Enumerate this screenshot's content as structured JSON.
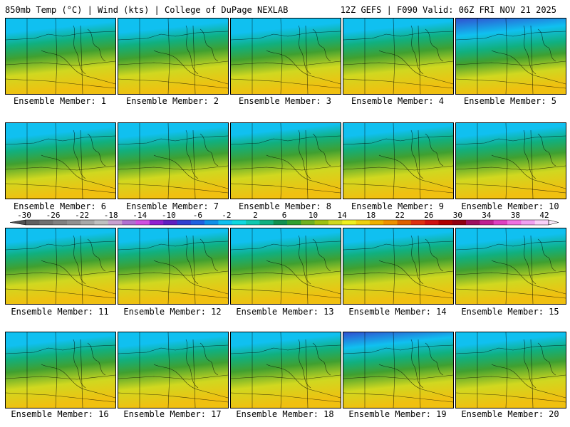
{
  "header": {
    "left": "850mb Temp (°C) | Wind (kts) | College of DuPage NEXLAB",
    "right": "12Z GEFS | F090 Valid: 06Z FRI NOV 21 2025"
  },
  "panels": [
    {
      "caption": "Ensemble Member: 1",
      "cold": 0.55
    },
    {
      "caption": "Ensemble Member: 2",
      "cold": 0.55
    },
    {
      "caption": "Ensemble Member: 3",
      "cold": 0.65
    },
    {
      "caption": "Ensemble Member: 4",
      "cold": 0.5
    },
    {
      "caption": "Ensemble Member: 5",
      "cold": 0.95
    },
    {
      "caption": "Ensemble Member: 6",
      "cold": 0.6
    },
    {
      "caption": "Ensemble Member: 7",
      "cold": 0.55
    },
    {
      "caption": "Ensemble Member: 8",
      "cold": 0.3
    },
    {
      "caption": "Ensemble Member: 9",
      "cold": 0.45
    },
    {
      "caption": "Ensemble Member: 10",
      "cold": 0.5
    },
    {
      "caption": "Ensemble Member: 11",
      "cold": 0.55
    },
    {
      "caption": "Ensemble Member: 12",
      "cold": 0.5
    },
    {
      "caption": "Ensemble Member: 13",
      "cold": 0.6
    },
    {
      "caption": "Ensemble Member: 14",
      "cold": 0.55
    },
    {
      "caption": "Ensemble Member: 15",
      "cold": 0.7
    },
    {
      "caption": "Ensemble Member: 16",
      "cold": 0.5
    },
    {
      "caption": "Ensemble Member: 17",
      "cold": 0.55
    },
    {
      "caption": "Ensemble Member: 18",
      "cold": 0.45
    },
    {
      "caption": "Ensemble Member: 19",
      "cold": 0.75
    },
    {
      "caption": "Ensemble Member: 20",
      "cold": 0.45
    }
  ],
  "colorbar": {
    "labels": [
      "-30",
      "-26",
      "-22",
      "-18",
      "-14",
      "-10",
      "-6",
      "-2",
      "2",
      "6",
      "10",
      "14",
      "18",
      "22",
      "26",
      "30",
      "34",
      "38",
      "42"
    ],
    "colors": [
      "#606060",
      "#707070",
      "#808080",
      "#909090",
      "#a8a8a8",
      "#c0c0c0",
      "#c8a0d0",
      "#b070d0",
      "#d050e0",
      "#9020d0",
      "#6020c0",
      "#3040d0",
      "#2060e0",
      "#1090e8",
      "#10c0f0",
      "#10d8e0",
      "#10c8b0",
      "#10b080",
      "#109050",
      "#30a030",
      "#70b020",
      "#a0c010",
      "#d0d820",
      "#f0f020",
      "#f0d010",
      "#f0b000",
      "#f09000",
      "#e06000",
      "#e03010",
      "#d01010",
      "#b00000",
      "#900010",
      "#a01060",
      "#c02090",
      "#e040c0",
      "#f070e0",
      "#f0a0f0",
      "#f8d0f8"
    ]
  },
  "colors": {
    "cold": "#3050d0",
    "cool": "#10c0f0",
    "mid": "#10b080",
    "green": "#40a030",
    "warm": "#d0d820",
    "hot": "#f0c010"
  }
}
